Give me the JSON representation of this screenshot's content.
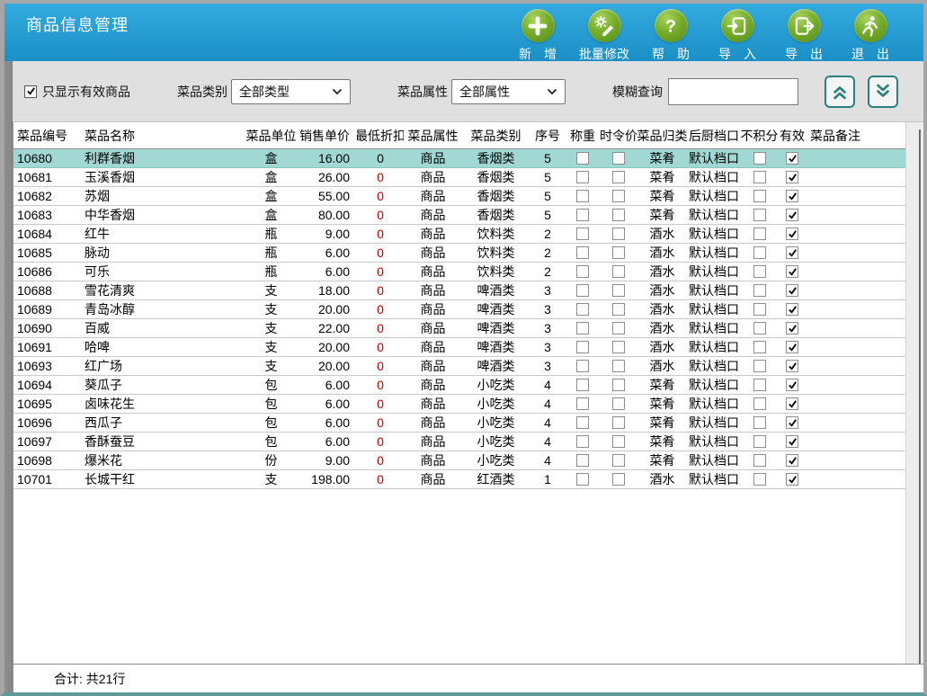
{
  "window": {
    "title": "商品信息管理"
  },
  "toolbar": {
    "buttons": [
      {
        "name": "add-button",
        "icon": "plus-icon",
        "label": "新　增"
      },
      {
        "name": "batch-edit-button",
        "icon": "batch-edit-icon",
        "label": "批量修改"
      },
      {
        "name": "help-button",
        "icon": "help-icon",
        "label": "帮　助"
      },
      {
        "name": "import-button",
        "icon": "import-icon",
        "label": "导　入"
      },
      {
        "name": "export-button",
        "icon": "export-icon",
        "label": "导　出"
      },
      {
        "name": "exit-button",
        "icon": "exit-icon",
        "label": "退　出"
      }
    ]
  },
  "filters": {
    "show_valid_only": {
      "label": "只显示有效商品",
      "checked": true
    },
    "category": {
      "label": "菜品类别",
      "value": "全部类型"
    },
    "attribute": {
      "label": "菜品属性",
      "value": "全部属性"
    },
    "search": {
      "label": "模糊查询",
      "value": ""
    }
  },
  "table": {
    "columns": [
      "菜品编号",
      "菜品名称",
      "菜品单位",
      "销售单价",
      "最低折扣",
      "菜品属性",
      "菜品类别",
      "序号",
      "称重",
      "时令价",
      "菜品归类",
      "后厨档口",
      "不积分",
      "有效",
      "菜品备注"
    ],
    "selected_row_index": 0,
    "rows": [
      {
        "code": "10680",
        "name": "利群香烟",
        "unit": "盒",
        "price": "16.00",
        "discount": "0",
        "attr": "商品",
        "category": "香烟类",
        "seq": "5",
        "weigh": false,
        "seasonal": false,
        "group": "菜肴",
        "station": "默认档口",
        "no_points": false,
        "valid": true,
        "remark": ""
      },
      {
        "code": "10681",
        "name": "玉溪香烟",
        "unit": "盒",
        "price": "26.00",
        "discount": "0",
        "attr": "商品",
        "category": "香烟类",
        "seq": "5",
        "weigh": false,
        "seasonal": false,
        "group": "菜肴",
        "station": "默认档口",
        "no_points": false,
        "valid": true,
        "remark": ""
      },
      {
        "code": "10682",
        "name": "苏烟",
        "unit": "盒",
        "price": "55.00",
        "discount": "0",
        "attr": "商品",
        "category": "香烟类",
        "seq": "5",
        "weigh": false,
        "seasonal": false,
        "group": "菜肴",
        "station": "默认档口",
        "no_points": false,
        "valid": true,
        "remark": ""
      },
      {
        "code": "10683",
        "name": "中华香烟",
        "unit": "盒",
        "price": "80.00",
        "discount": "0",
        "attr": "商品",
        "category": "香烟类",
        "seq": "5",
        "weigh": false,
        "seasonal": false,
        "group": "菜肴",
        "station": "默认档口",
        "no_points": false,
        "valid": true,
        "remark": ""
      },
      {
        "code": "10684",
        "name": "红牛",
        "unit": "瓶",
        "price": "9.00",
        "discount": "0",
        "attr": "商品",
        "category": "饮料类",
        "seq": "2",
        "weigh": false,
        "seasonal": false,
        "group": "酒水",
        "station": "默认档口",
        "no_points": false,
        "valid": true,
        "remark": ""
      },
      {
        "code": "10685",
        "name": "脉动",
        "unit": "瓶",
        "price": "6.00",
        "discount": "0",
        "attr": "商品",
        "category": "饮料类",
        "seq": "2",
        "weigh": false,
        "seasonal": false,
        "group": "酒水",
        "station": "默认档口",
        "no_points": false,
        "valid": true,
        "remark": ""
      },
      {
        "code": "10686",
        "name": "可乐",
        "unit": "瓶",
        "price": "6.00",
        "discount": "0",
        "attr": "商品",
        "category": "饮料类",
        "seq": "2",
        "weigh": false,
        "seasonal": false,
        "group": "酒水",
        "station": "默认档口",
        "no_points": false,
        "valid": true,
        "remark": ""
      },
      {
        "code": "10688",
        "name": "雪花清爽",
        "unit": "支",
        "price": "18.00",
        "discount": "0",
        "attr": "商品",
        "category": "啤酒类",
        "seq": "3",
        "weigh": false,
        "seasonal": false,
        "group": "酒水",
        "station": "默认档口",
        "no_points": false,
        "valid": true,
        "remark": ""
      },
      {
        "code": "10689",
        "name": "青岛冰醇",
        "unit": "支",
        "price": "20.00",
        "discount": "0",
        "attr": "商品",
        "category": "啤酒类",
        "seq": "3",
        "weigh": false,
        "seasonal": false,
        "group": "酒水",
        "station": "默认档口",
        "no_points": false,
        "valid": true,
        "remark": ""
      },
      {
        "code": "10690",
        "name": "百威",
        "unit": "支",
        "price": "22.00",
        "discount": "0",
        "attr": "商品",
        "category": "啤酒类",
        "seq": "3",
        "weigh": false,
        "seasonal": false,
        "group": "酒水",
        "station": "默认档口",
        "no_points": false,
        "valid": true,
        "remark": ""
      },
      {
        "code": "10691",
        "name": "哈啤",
        "unit": "支",
        "price": "20.00",
        "discount": "0",
        "attr": "商品",
        "category": "啤酒类",
        "seq": "3",
        "weigh": false,
        "seasonal": false,
        "group": "酒水",
        "station": "默认档口",
        "no_points": false,
        "valid": true,
        "remark": ""
      },
      {
        "code": "10693",
        "name": "红广场",
        "unit": "支",
        "price": "20.00",
        "discount": "0",
        "attr": "商品",
        "category": "啤酒类",
        "seq": "3",
        "weigh": false,
        "seasonal": false,
        "group": "酒水",
        "station": "默认档口",
        "no_points": false,
        "valid": true,
        "remark": ""
      },
      {
        "code": "10694",
        "name": "葵瓜子",
        "unit": "包",
        "price": "6.00",
        "discount": "0",
        "attr": "商品",
        "category": "小吃类",
        "seq": "4",
        "weigh": false,
        "seasonal": false,
        "group": "菜肴",
        "station": "默认档口",
        "no_points": false,
        "valid": true,
        "remark": ""
      },
      {
        "code": "10695",
        "name": "卤味花生",
        "unit": "包",
        "price": "6.00",
        "discount": "0",
        "attr": "商品",
        "category": "小吃类",
        "seq": "4",
        "weigh": false,
        "seasonal": false,
        "group": "菜肴",
        "station": "默认档口",
        "no_points": false,
        "valid": true,
        "remark": ""
      },
      {
        "code": "10696",
        "name": "西瓜子",
        "unit": "包",
        "price": "6.00",
        "discount": "0",
        "attr": "商品",
        "category": "小吃类",
        "seq": "4",
        "weigh": false,
        "seasonal": false,
        "group": "菜肴",
        "station": "默认档口",
        "no_points": false,
        "valid": true,
        "remark": ""
      },
      {
        "code": "10697",
        "name": "香酥蚕豆",
        "unit": "包",
        "price": "6.00",
        "discount": "0",
        "attr": "商品",
        "category": "小吃类",
        "seq": "4",
        "weigh": false,
        "seasonal": false,
        "group": "菜肴",
        "station": "默认档口",
        "no_points": false,
        "valid": true,
        "remark": ""
      },
      {
        "code": "10698",
        "name": "爆米花",
        "unit": "份",
        "price": "9.00",
        "discount": "0",
        "attr": "商品",
        "category": "小吃类",
        "seq": "4",
        "weigh": false,
        "seasonal": false,
        "group": "菜肴",
        "station": "默认档口",
        "no_points": false,
        "valid": true,
        "remark": ""
      },
      {
        "code": "10701",
        "name": "长城干红",
        "unit": "支",
        "price": "198.00",
        "discount": "0",
        "attr": "商品",
        "category": "红酒类",
        "seq": "1",
        "weigh": false,
        "seasonal": false,
        "group": "酒水",
        "station": "默认档口",
        "no_points": false,
        "valid": true,
        "remark": ""
      }
    ]
  },
  "footer": {
    "total_label": "合计: 共21行"
  },
  "colors": {
    "header_blue_top": "#33abdf",
    "header_blue_bottom": "#1b8fc6",
    "button_green": "#76ad2a",
    "selected_row": "#a2d8d4",
    "discount_red": "#c00000",
    "chevron_teal": "#2a7f7f"
  }
}
